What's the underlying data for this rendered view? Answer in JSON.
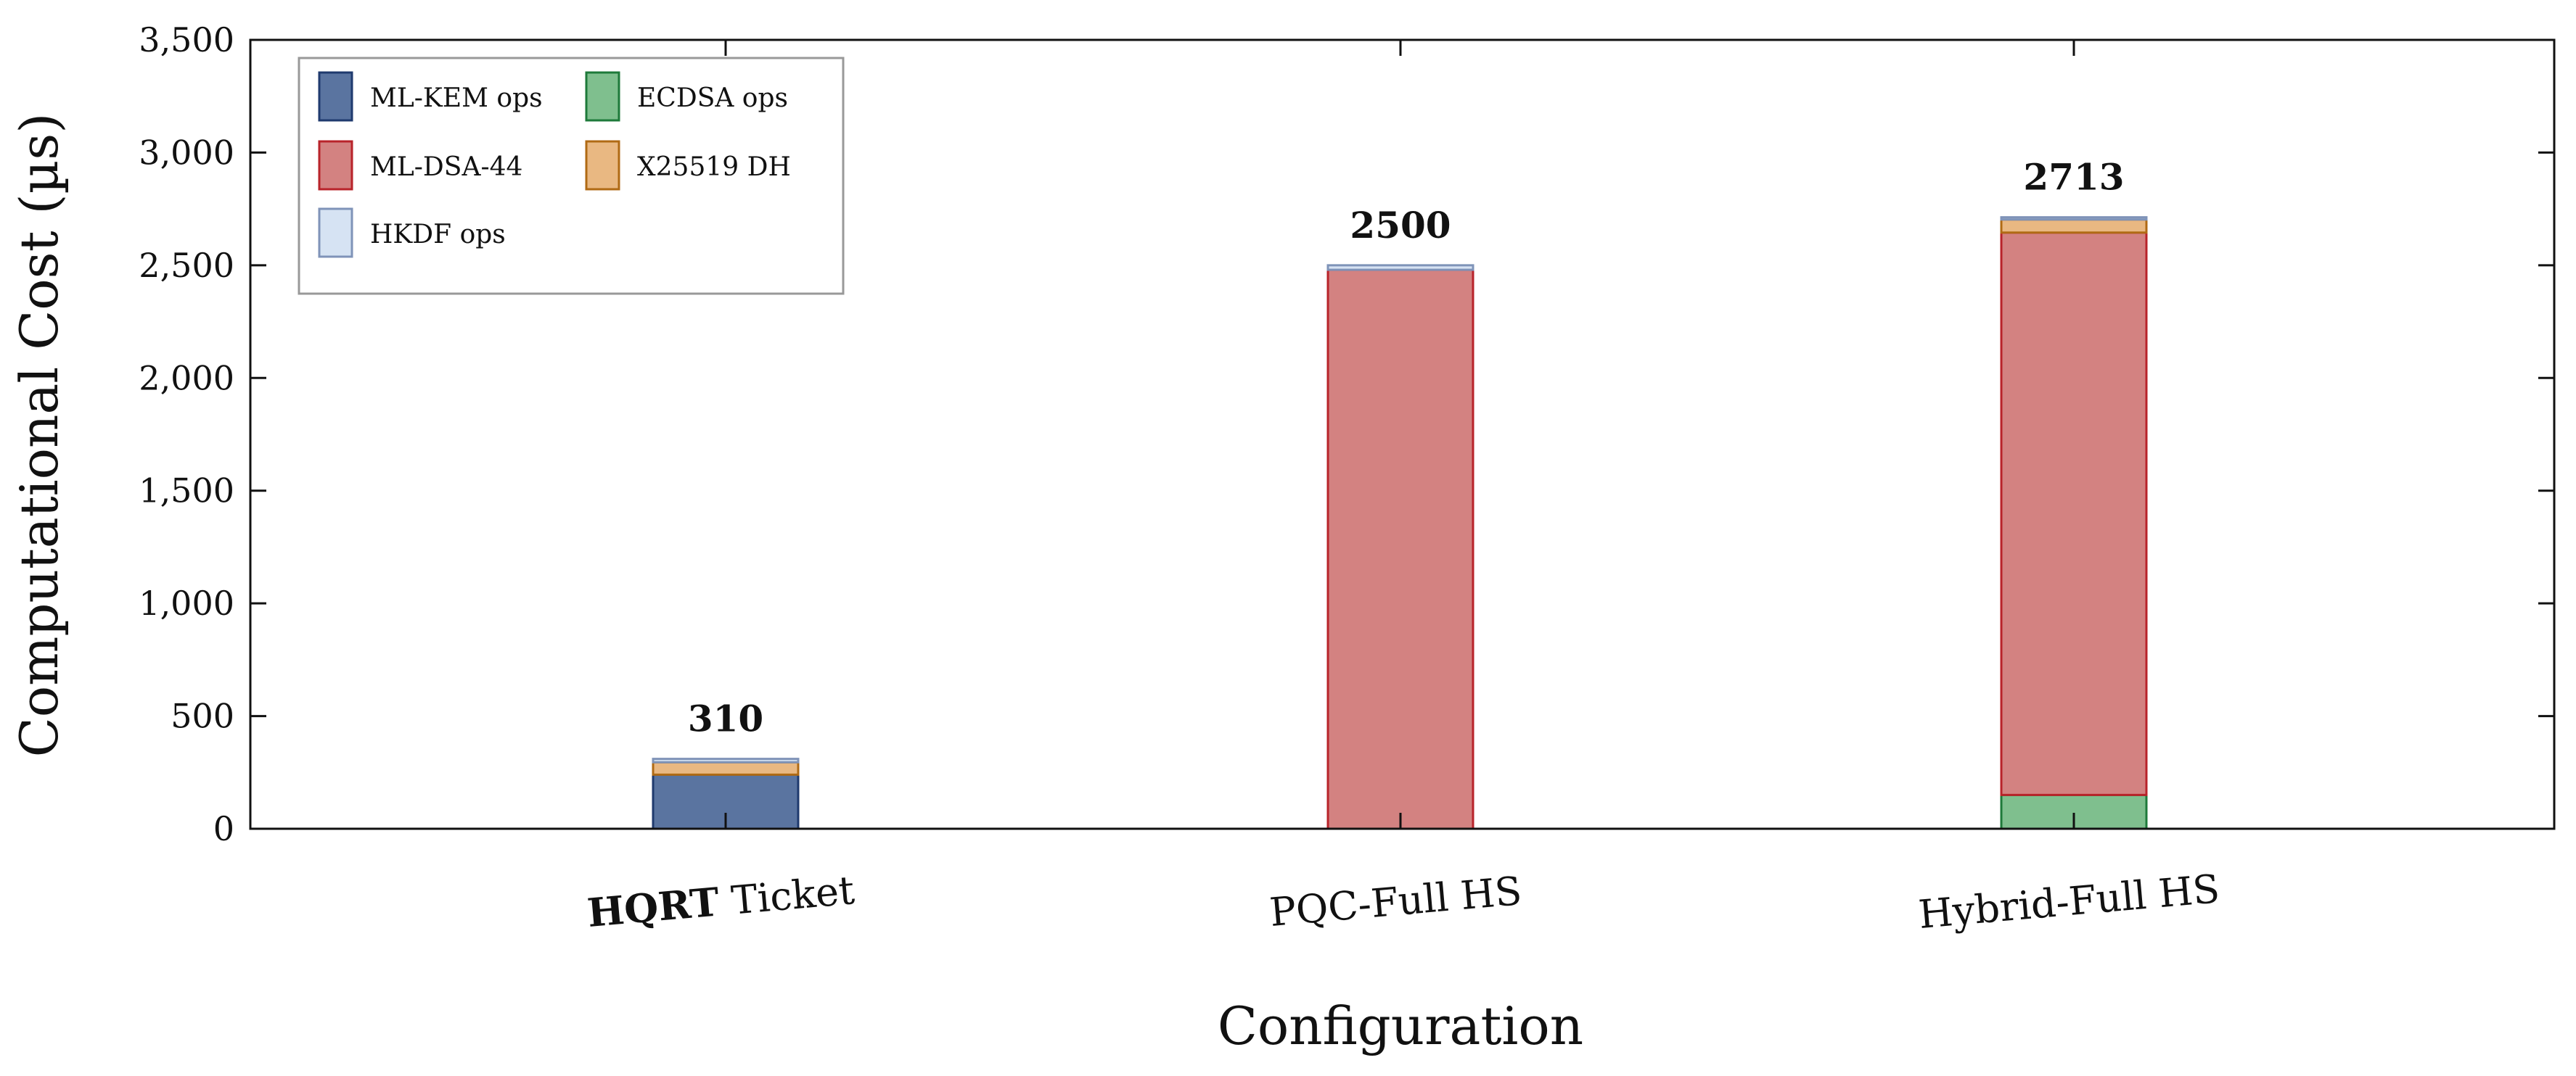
{
  "chart_data": {
    "type": "bar",
    "stacked": true,
    "xlabel": "Configuration",
    "ylabel": "Computational Cost (µs)",
    "ylim": [
      0,
      3500
    ],
    "yticks": [
      0,
      500,
      1000,
      1500,
      2000,
      2500,
      3000,
      3500
    ],
    "ytick_labels": [
      "0",
      "500",
      "1,000",
      "1,500",
      "2,000",
      "2,500",
      "3,000",
      "3,500"
    ],
    "categories": [
      {
        "bold": "HQRT",
        "rest": " Ticket"
      },
      {
        "bold": "",
        "rest": "PQC-Full HS"
      },
      {
        "bold": "",
        "rest": "Hybrid-Full HS"
      }
    ],
    "totals": [
      "310",
      "2500",
      "2713"
    ],
    "series": [
      {
        "name": "ML-KEM ops",
        "values": [
          240,
          0,
          0
        ],
        "color": "#5a74a0",
        "stroke": "#1f3a6e"
      },
      {
        "name": "ML-DSA-44",
        "values": [
          0,
          2480,
          2495
        ],
        "color": "#d38281",
        "stroke": "#b8232a"
      },
      {
        "name": "HKDF ops",
        "values": [
          15,
          20,
          10
        ],
        "color": "#d6e3f3",
        "stroke": "#7f93b8"
      },
      {
        "name": "ECDSA ops",
        "values": [
          0,
          0,
          150
        ],
        "color": "#7fbf8e",
        "stroke": "#1e7a3a"
      },
      {
        "name": "X25519 DH",
        "values": [
          55,
          0,
          58
        ],
        "color": "#e9b882",
        "stroke": "#b06a14"
      }
    ],
    "stack_order": [
      0,
      3,
      1,
      4,
      2
    ],
    "legend": {
      "position": "top-left",
      "columns": 2,
      "order": [
        0,
        3,
        1,
        4,
        2
      ]
    },
    "grid": false
  }
}
